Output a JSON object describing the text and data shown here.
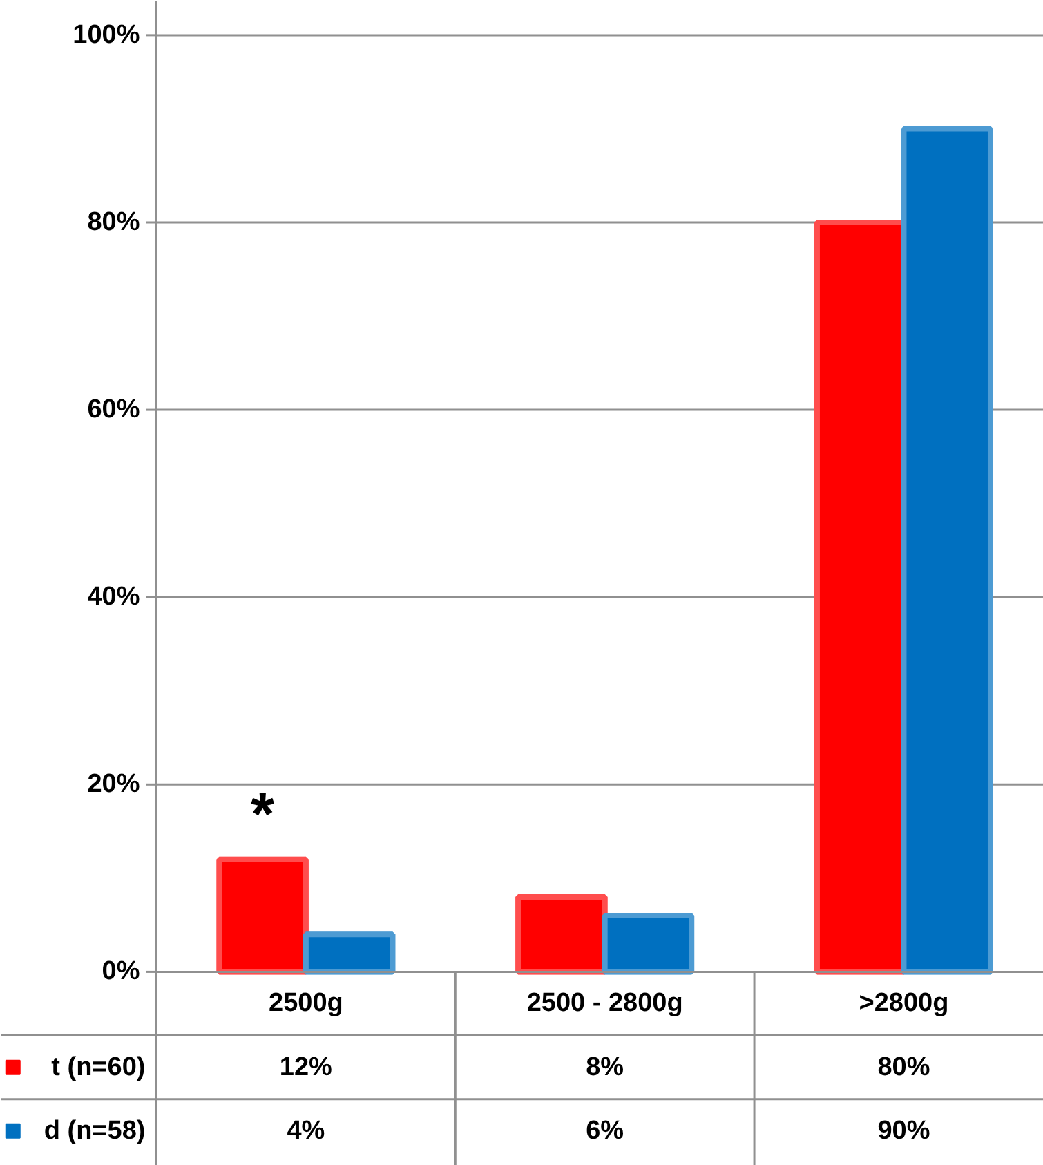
{
  "chart_data": {
    "type": "bar",
    "categories": [
      "2500g",
      "2500 - 2800g",
      ">2800g"
    ],
    "series": [
      {
        "name": "t (n=60)",
        "color": "#ff0000",
        "values": [
          12,
          8,
          80
        ],
        "value_labels": [
          "12%",
          "8%",
          "80%"
        ]
      },
      {
        "name": "d (n=58)",
        "color": "#0070c0",
        "values": [
          4,
          6,
          90
        ],
        "value_labels": [
          "4%",
          "6%",
          "90%"
        ]
      }
    ],
    "ylim": [
      0,
      100
    ],
    "yticks": [
      {
        "value": 0,
        "label": "0%"
      },
      {
        "value": 20,
        "label": "20%"
      },
      {
        "value": 40,
        "label": "40%"
      },
      {
        "value": 60,
        "label": "60%"
      },
      {
        "value": 80,
        "label": "80%"
      },
      {
        "value": 100,
        "label": "100%"
      }
    ],
    "grid": "y",
    "legend": "bottom left",
    "annotations": [
      "*"
    ]
  }
}
